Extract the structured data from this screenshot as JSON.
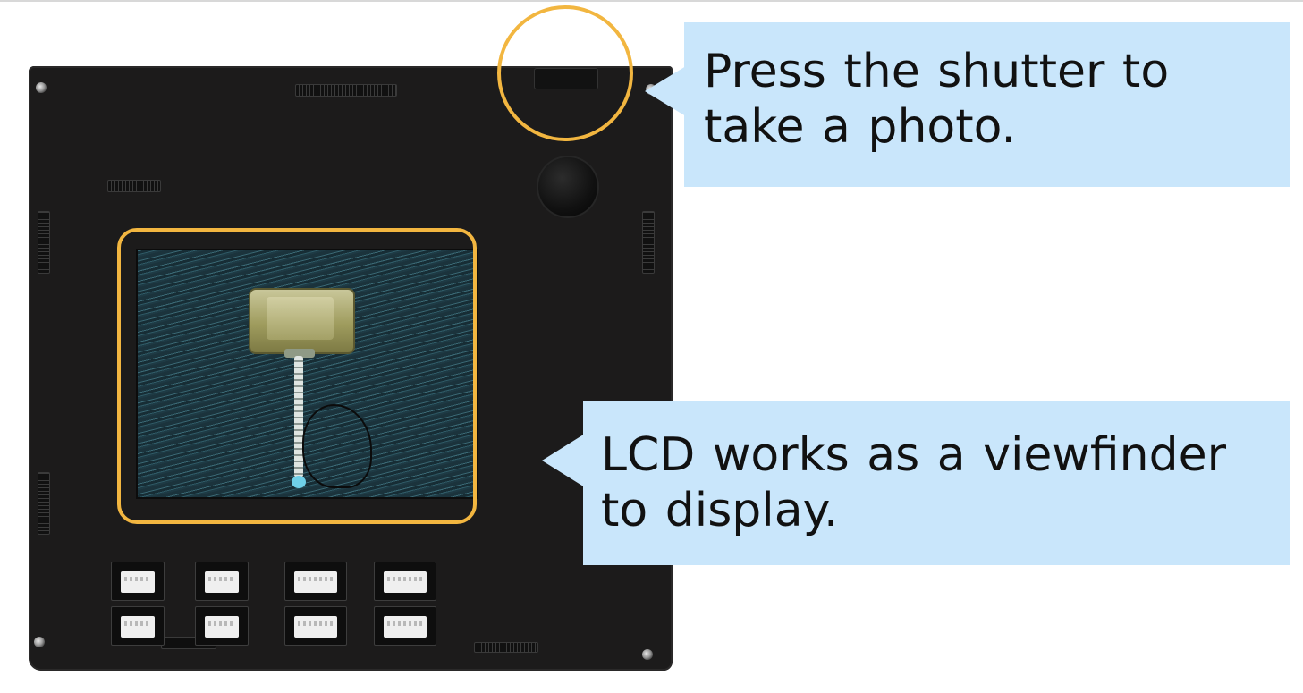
{
  "callouts": {
    "shutter": "Press the shutter to\ntake a photo.",
    "lcd": "LCD works as a viewfinder\nto display."
  },
  "colors": {
    "highlight": "#f2b640",
    "callout_bg": "#c9e6fb",
    "board": "#1c1b1b"
  },
  "icons": {
    "shutter": "shutter-button",
    "lcd": "lcd-screen",
    "connector": "port-connector",
    "screw": "screw"
  }
}
